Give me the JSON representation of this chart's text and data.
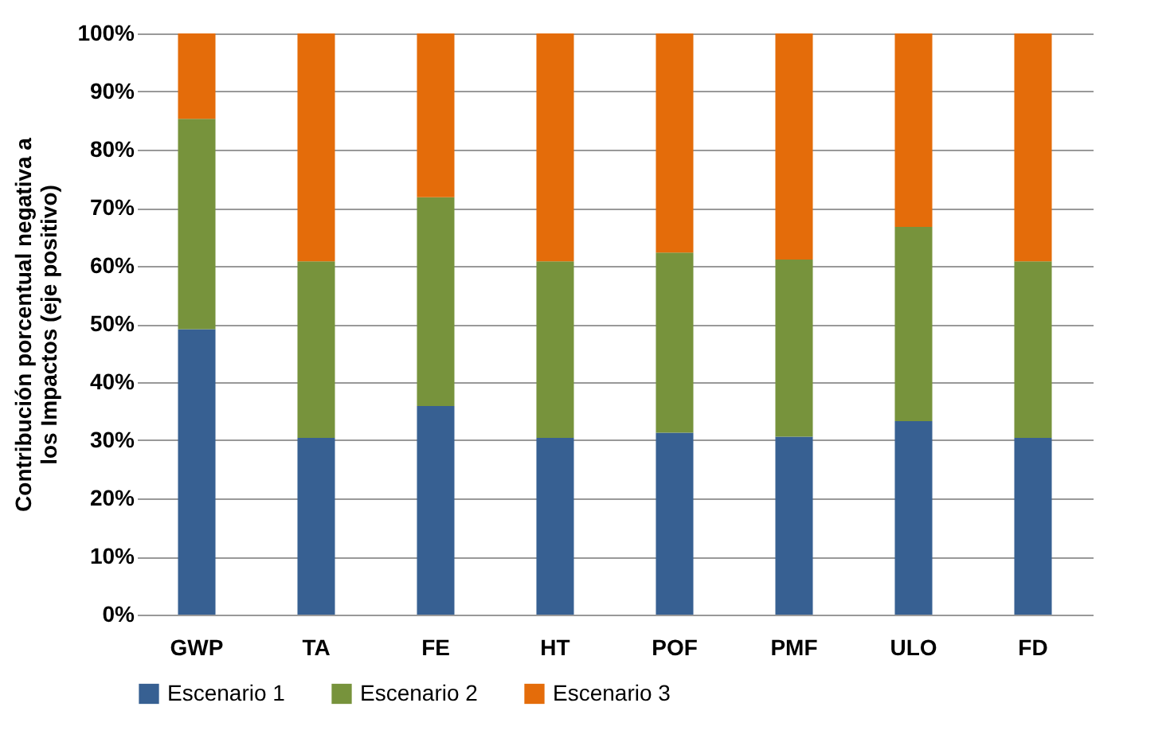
{
  "chart_data": {
    "type": "bar",
    "stacked": true,
    "ylabel": "Contribución porcentual negativa a los Impactos (eje positivo)",
    "categories": [
      "GWP",
      "TA",
      "FE",
      "HT",
      "POF",
      "PMF",
      "ULO",
      "FD"
    ],
    "series": [
      {
        "name": "Escenario 1",
        "color": "#376092",
        "values": [
          49.1,
          30.4,
          35.9,
          30.4,
          31.3,
          30.6,
          33.3,
          30.4
        ]
      },
      {
        "name": "Escenario 2",
        "color": "#77933c",
        "values": [
          36.2,
          30.4,
          35.9,
          30.4,
          31.0,
          30.5,
          33.4,
          30.4
        ]
      },
      {
        "name": "Escenario 3",
        "color": "#e46c0a",
        "values": [
          14.7,
          39.2,
          28.2,
          39.2,
          37.7,
          38.9,
          33.3,
          39.2
        ]
      }
    ],
    "ylim": [
      0,
      100
    ],
    "yticks": [
      {
        "value": 0,
        "label": "0%"
      },
      {
        "value": 10,
        "label": "10%"
      },
      {
        "value": 20,
        "label": "20%"
      },
      {
        "value": 30,
        "label": "30%"
      },
      {
        "value": 40,
        "label": "40%"
      },
      {
        "value": 50,
        "label": "50%"
      },
      {
        "value": 60,
        "label": "60%"
      },
      {
        "value": 70,
        "label": "70%"
      },
      {
        "value": 80,
        "label": "80%"
      },
      {
        "value": 90,
        "label": "90%"
      },
      {
        "value": 100,
        "label": "100%"
      }
    ],
    "grid": "y",
    "legend": "bottom"
  }
}
